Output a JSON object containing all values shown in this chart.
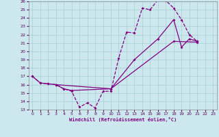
{
  "xlabel": "Windchill (Refroidissement éolien,°C)",
  "xlim": [
    -0.5,
    23.5
  ],
  "ylim": [
    13,
    26
  ],
  "xticks": [
    0,
    1,
    2,
    3,
    4,
    5,
    6,
    7,
    8,
    9,
    10,
    11,
    12,
    13,
    14,
    15,
    16,
    17,
    18,
    19,
    20,
    21,
    22,
    23
  ],
  "yticks": [
    13,
    14,
    15,
    16,
    17,
    18,
    19,
    20,
    21,
    22,
    23,
    24,
    25,
    26
  ],
  "line_color": "#800080",
  "bg_color": "#cce8ee",
  "grid_color": "#a8cdd4",
  "line1_x": [
    0,
    1,
    2,
    3,
    4,
    5,
    6,
    7,
    8,
    9,
    10,
    11,
    12,
    13,
    14,
    15,
    16,
    17,
    18,
    19,
    20,
    21
  ],
  "line1_y": [
    17,
    16.2,
    16.1,
    16.0,
    15.5,
    15.2,
    13.3,
    13.8,
    13.2,
    15.2,
    15.2,
    19.2,
    22.3,
    22.2,
    25.2,
    25.0,
    26.2,
    26.1,
    25.2,
    23.8,
    22.0,
    21.2
  ],
  "line2_x": [
    0,
    1,
    2,
    3,
    10,
    18,
    21
  ],
  "line2_y": [
    17,
    16.2,
    16.1,
    16.0,
    15.5,
    21.2,
    21.1
  ],
  "line3_x": [
    3,
    4,
    5,
    10,
    13,
    16,
    18,
    19,
    20,
    21
  ],
  "line3_y": [
    16.0,
    15.5,
    15.3,
    15.5,
    19.0,
    21.5,
    23.8,
    20.5,
    21.5,
    21.2
  ],
  "marker": "D",
  "markersize": 2.0,
  "linewidth": 0.9
}
